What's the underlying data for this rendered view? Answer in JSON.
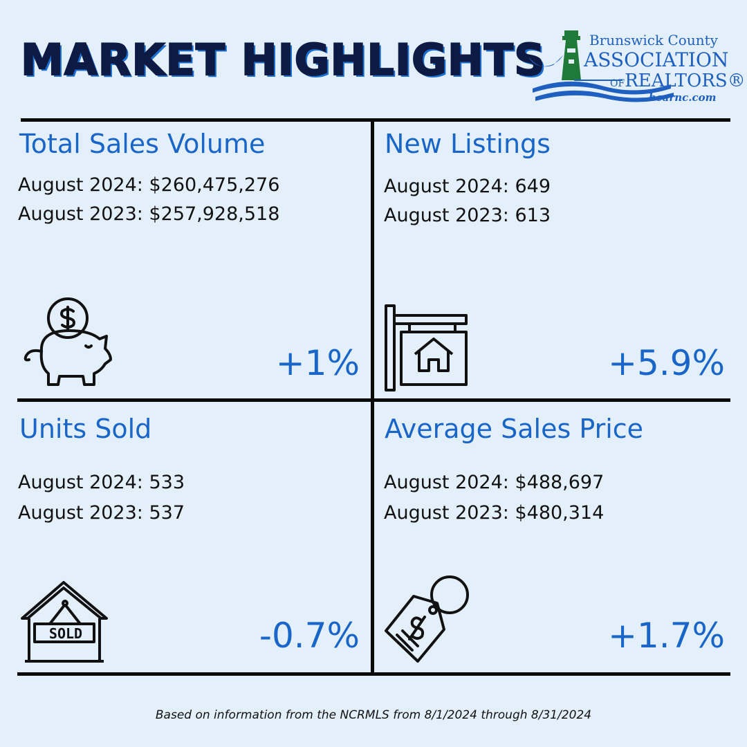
{
  "header": {
    "title": "MARKET HIGHLIGHTS",
    "logo": {
      "line1": "Brunswick County",
      "line2": "ASSOCIATION",
      "line3_of": "OF",
      "line3_main": "REALTORS®",
      "line4": "bcarnc.com",
      "colors": {
        "blue": "#1f5fbf",
        "green": "#1f7a3a"
      }
    }
  },
  "cells": [
    {
      "title": "Total Sales Volume",
      "line1": "August 2024: $260,475,276",
      "line2": "August 2023: $257,928,518",
      "change": "+1%",
      "icon": "piggy-bank-icon"
    },
    {
      "title": "New Listings",
      "line1": "August 2024: 649",
      "line2": "August 2023: 613",
      "change": "+5.9%",
      "icon": "for-sale-sign-icon"
    },
    {
      "title": "Units Sold",
      "line1": "August 2024: 533",
      "line2": "August 2023: 537",
      "change": "-0.7%",
      "icon": "sold-house-icon",
      "sign_text": "SOLD"
    },
    {
      "title": "Average Sales Price",
      "line1": "August 2024: $488,697",
      "line2": "August 2023: $480,314",
      "change": "+1.7%",
      "icon": "price-tag-icon"
    }
  ],
  "footnote": "Based on information from the NCRMLS from 8/1/2024 through 8/31/2024",
  "colors": {
    "accent": "#1a65c8",
    "background": "#e3f0fb",
    "title": "#0d1b44"
  }
}
